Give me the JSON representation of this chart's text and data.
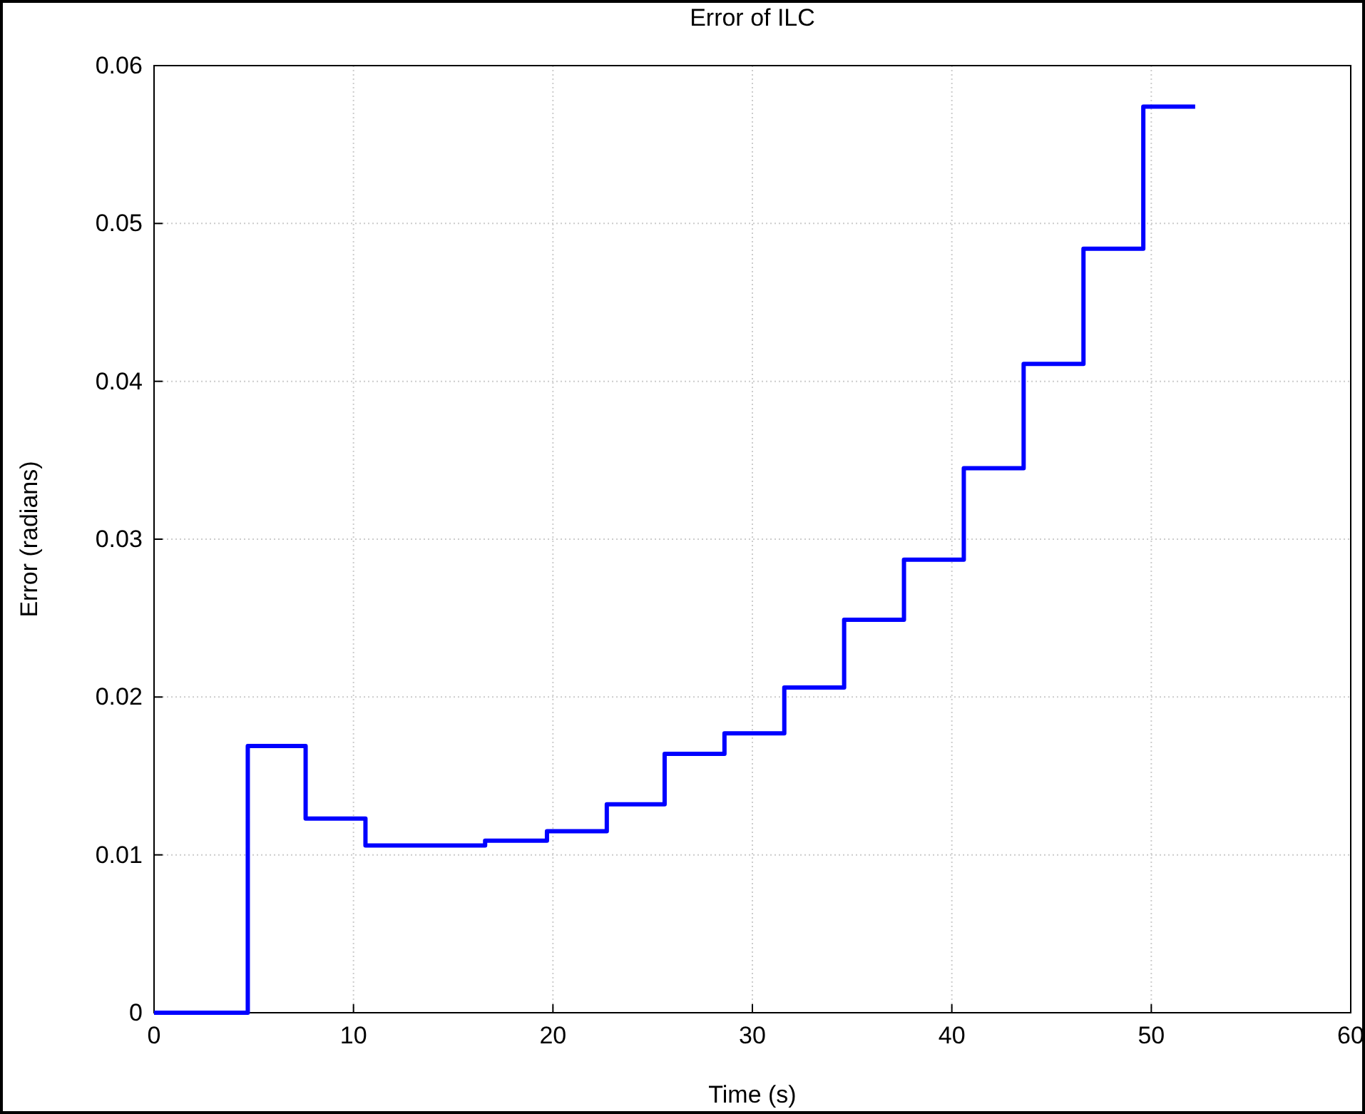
{
  "chart_data": {
    "type": "step",
    "title": "Error of ILC",
    "xlabel": "Time (s)",
    "ylabel": "Error (radians)",
    "xlim": [
      0,
      60
    ],
    "xticks": [
      0,
      10,
      20,
      30,
      40,
      50,
      60
    ],
    "ylim": [
      0,
      0.06
    ],
    "yticks": [
      0,
      0.01,
      0.02,
      0.03,
      0.04,
      0.05,
      0.06
    ],
    "grid": true,
    "series": [
      {
        "color": "#0000ff",
        "x": [
          0,
          4.7,
          7.6,
          10.6,
          16.6,
          19.7,
          22.7,
          25.6,
          28.6,
          31.6,
          34.6,
          37.6,
          40.6,
          43.6,
          46.6,
          49.6,
          52.2
        ],
        "values": [
          0,
          0.0169,
          0.0123,
          0.0106,
          0.0109,
          0.0115,
          0.0132,
          0.0164,
          0.0177,
          0.0206,
          0.0249,
          0.0287,
          0.0345,
          0.0411,
          0.0484,
          0.0574,
          0.0574
        ]
      }
    ]
  }
}
